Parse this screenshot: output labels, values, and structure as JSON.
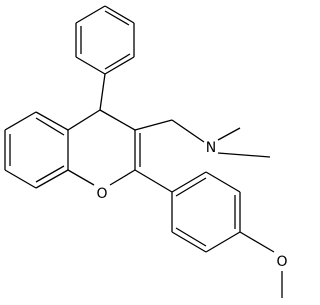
{
  "atoms": [
    {
      "label": "N"
    },
    {
      "label": "O"
    },
    {
      "label": "O"
    }
  ]
}
